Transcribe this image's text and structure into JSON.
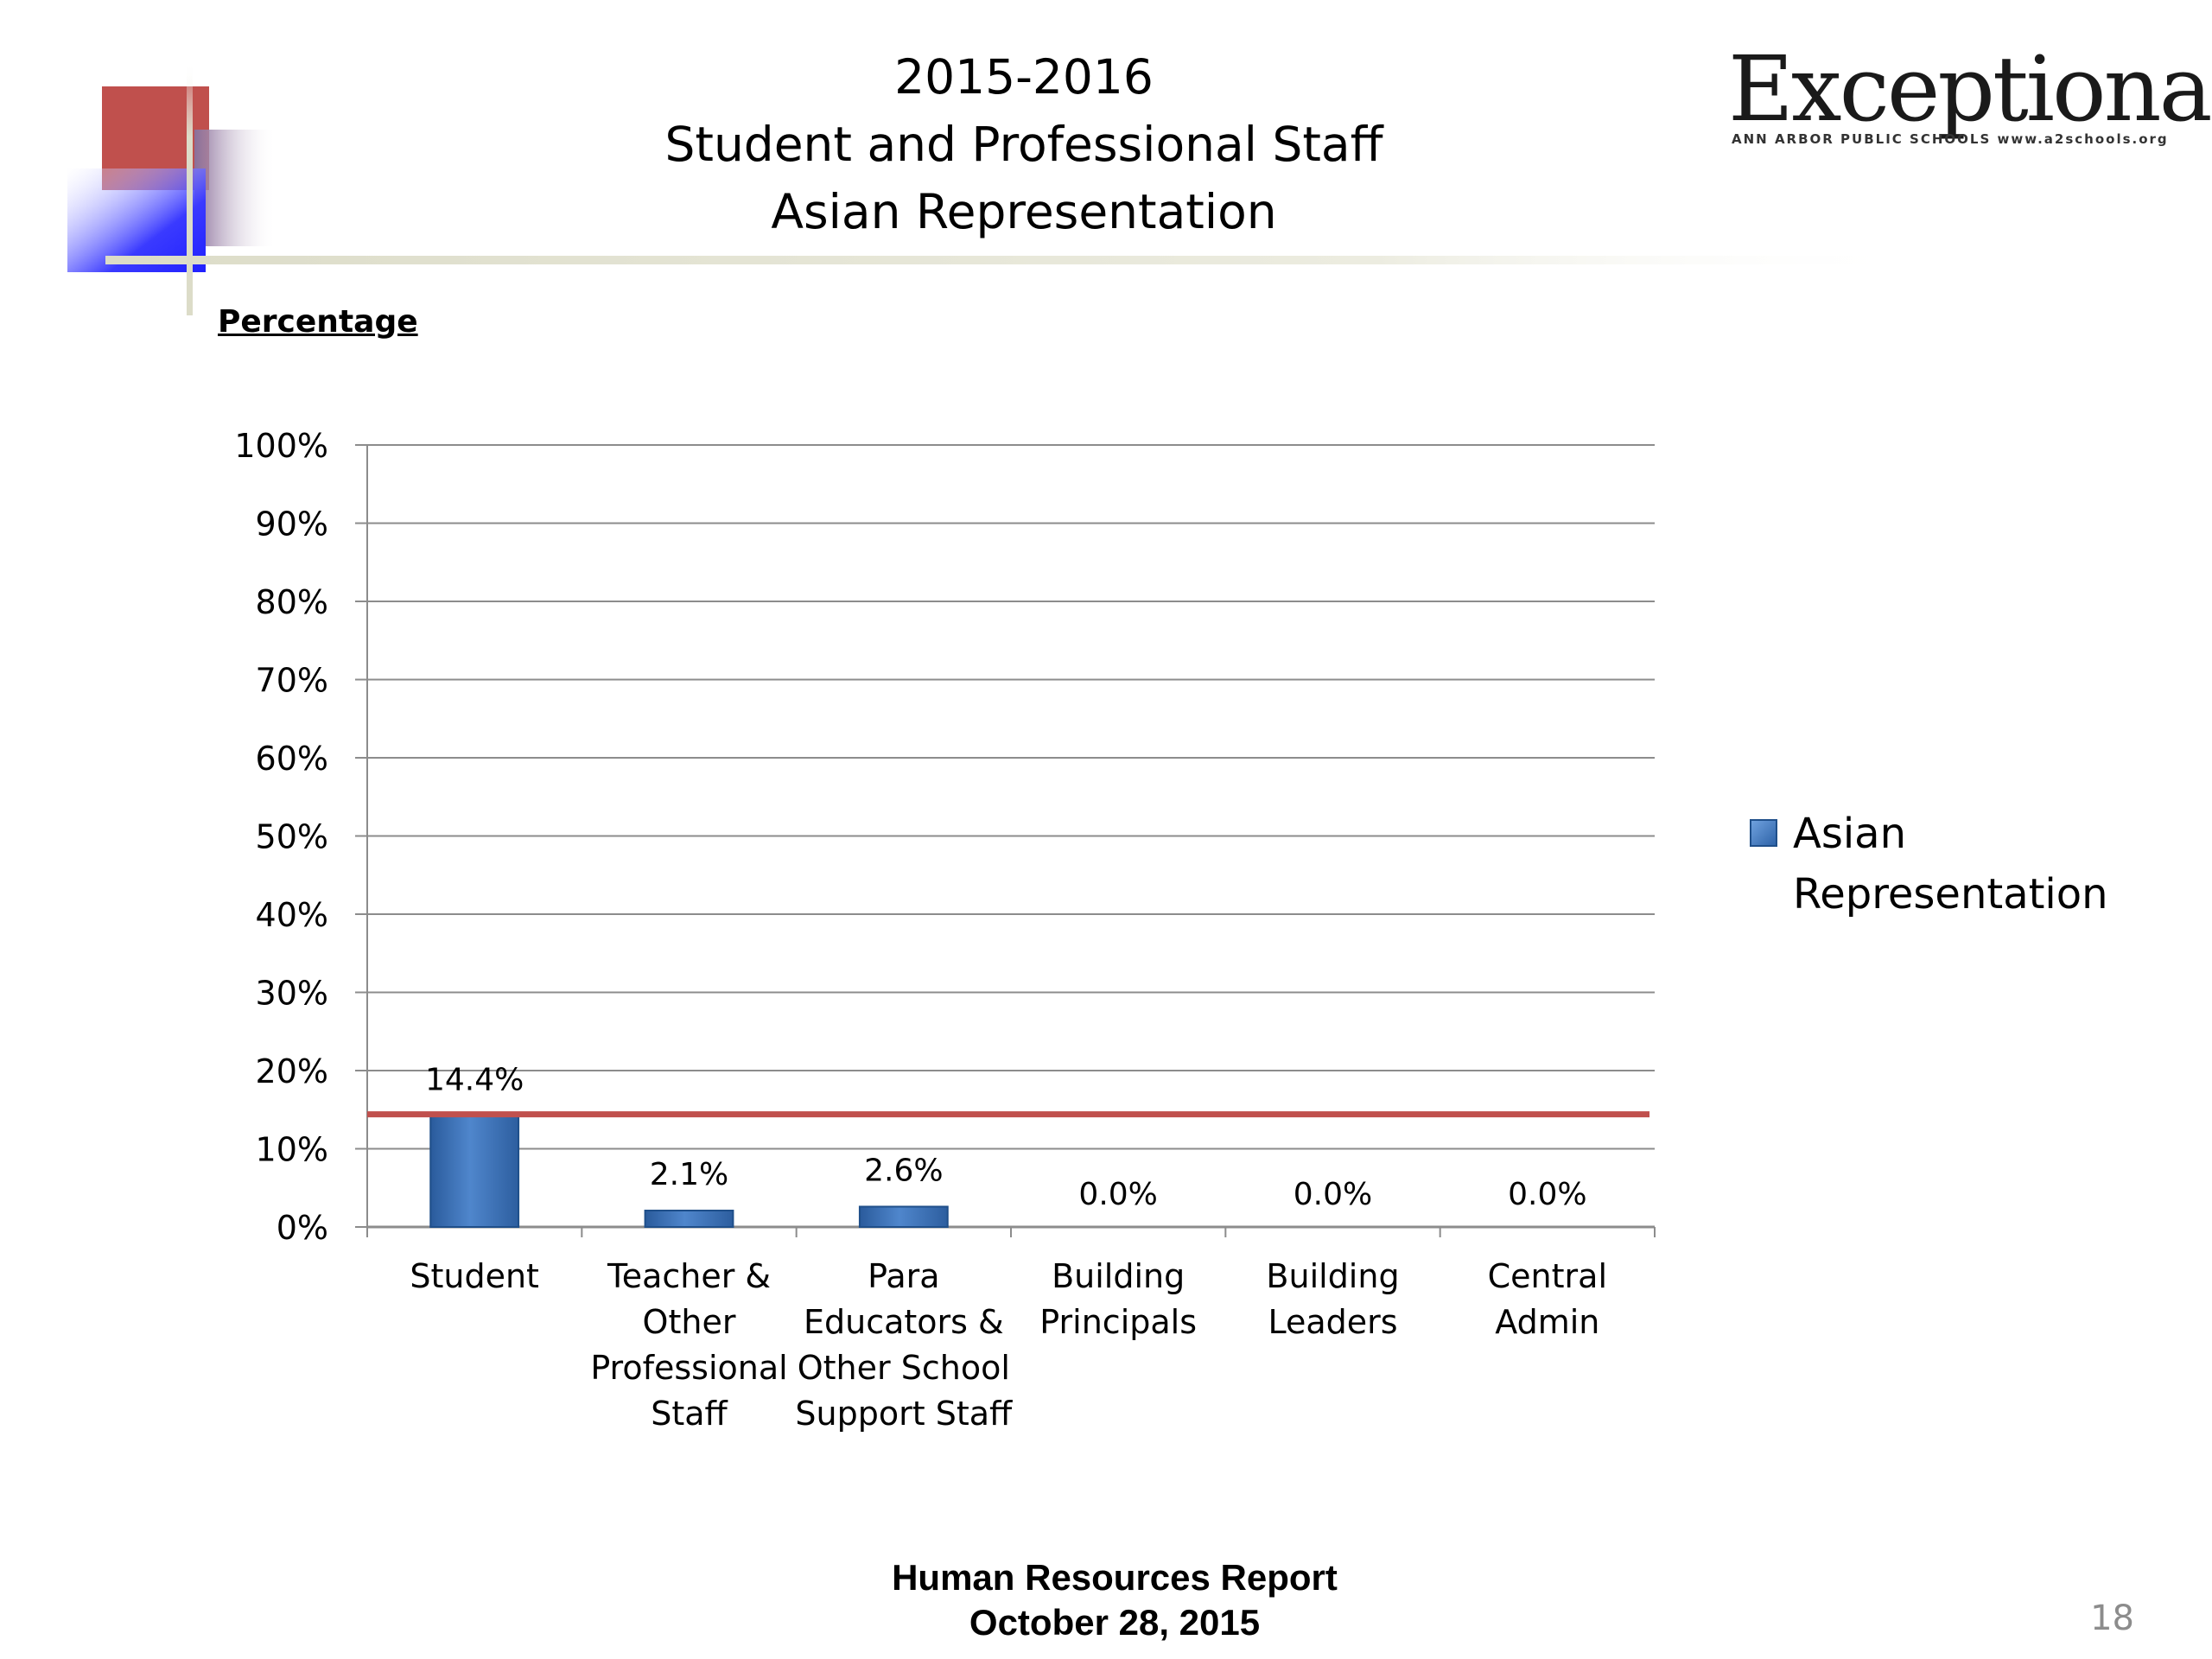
{
  "slide": {
    "title_lines": [
      "2015-2016",
      "Student and Professional Staff",
      "Asian Representation"
    ],
    "subheading": "Percentage",
    "footer_lines": [
      "Human Resources  Report",
      "October 28, 2015"
    ],
    "page_number": "18"
  },
  "logo": {
    "wordmark": "Exceptional",
    "tagline": "ANN ARBOR PUBLIC SCHOOLS www.a2schools.org"
  },
  "colors": {
    "bar": "#3b72b8",
    "reference_line": "#c0504d",
    "gridline": "#8c8c8c",
    "deco_red": "#c0504d",
    "deco_blue": "#3333ff"
  },
  "chart_data": {
    "type": "bar",
    "categories": [
      [
        "Student"
      ],
      [
        "Teacher &",
        "Other",
        "Professional",
        "Staff"
      ],
      [
        "Para",
        "Educators &",
        "Other School",
        "Support Staff"
      ],
      [
        "Building",
        "Principals"
      ],
      [
        "Building",
        "Leaders"
      ],
      [
        "Central",
        "Admin"
      ]
    ],
    "series": [
      {
        "name": "Asian Representation",
        "values": [
          14.4,
          2.1,
          2.6,
          0.0,
          0.0,
          0.0
        ]
      }
    ],
    "data_labels": [
      "14.4%",
      "2.1%",
      "2.6%",
      "0.0%",
      "0.0%",
      "0.0%"
    ],
    "reference_line": 14.4,
    "ylim": [
      0,
      100
    ],
    "yticks": [
      "0%",
      "10%",
      "20%",
      "30%",
      "40%",
      "50%",
      "60%",
      "70%",
      "80%",
      "90%",
      "100%"
    ],
    "grid": true,
    "legend_position": "right",
    "legend": [
      "Asian",
      "Representation"
    ]
  }
}
